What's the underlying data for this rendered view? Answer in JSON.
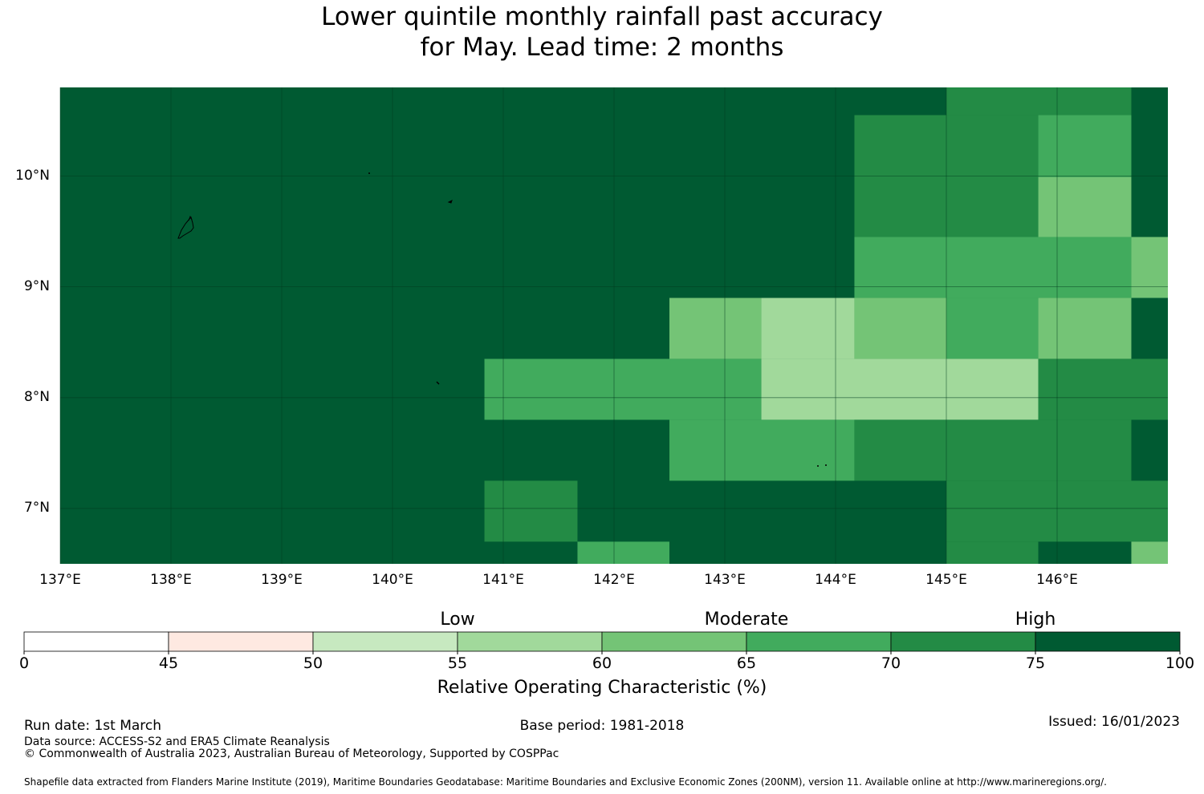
{
  "title": {
    "line1": "Lower quintile monthly rainfall past accuracy",
    "line2": "for May. Lead time: 2 months"
  },
  "map": {
    "lat_labels": [
      "10°N",
      "9°N",
      "8°N",
      "7°N"
    ],
    "lon_labels": [
      "137°E",
      "138°E",
      "139°E",
      "140°E",
      "141°E",
      "142°E",
      "143°E",
      "144°E",
      "145°E",
      "146°E"
    ],
    "background_color": "#005a32",
    "grid_color": "#003a1e"
  },
  "chart_data": {
    "type": "heatmap",
    "title": "Lower quintile monthly rainfall past accuracy for May. Lead time: 2 months",
    "xlabel": "",
    "ylabel": "",
    "xlim": [
      137,
      147
    ],
    "ylim": [
      6.5,
      10.8
    ],
    "xticks": [
      137,
      138,
      139,
      140,
      141,
      142,
      143,
      144,
      145,
      146
    ],
    "yticks": [
      7,
      8,
      9,
      10
    ],
    "default_value_range": [
      75,
      100
    ],
    "cells": [
      {
        "lon": [
          144.17,
          145.0
        ],
        "lat": [
          10.55,
          10.8
        ],
        "range": [
          75,
          100
        ]
      },
      {
        "lon": [
          145.0,
          146.67
        ],
        "lat": [
          10.55,
          10.8
        ],
        "range": [
          70,
          75
        ]
      },
      {
        "lon": [
          144.17,
          145.83
        ],
        "lat": [
          9.45,
          10.55
        ],
        "range": [
          70,
          75
        ]
      },
      {
        "lon": [
          145.83,
          146.67
        ],
        "lat": [
          9.99,
          10.55
        ],
        "range": [
          65,
          70
        ]
      },
      {
        "lon": [
          145.83,
          146.67
        ],
        "lat": [
          9.45,
          9.99
        ],
        "range": [
          60,
          65
        ]
      },
      {
        "lon": [
          144.17,
          146.67
        ],
        "lat": [
          8.9,
          9.45
        ],
        "range": [
          65,
          70
        ]
      },
      {
        "lon": [
          146.67,
          147.0
        ],
        "lat": [
          8.9,
          9.45
        ],
        "range": [
          60,
          65
        ]
      },
      {
        "lon": [
          142.5,
          143.33
        ],
        "lat": [
          8.35,
          8.9
        ],
        "range": [
          60,
          65
        ]
      },
      {
        "lon": [
          143.33,
          144.17
        ],
        "lat": [
          8.35,
          8.9
        ],
        "range": [
          55,
          60
        ]
      },
      {
        "lon": [
          144.17,
          145.0
        ],
        "lat": [
          8.35,
          8.9
        ],
        "range": [
          60,
          65
        ]
      },
      {
        "lon": [
          145.0,
          145.83
        ],
        "lat": [
          8.35,
          8.9
        ],
        "range": [
          65,
          70
        ]
      },
      {
        "lon": [
          145.83,
          146.67
        ],
        "lat": [
          8.35,
          8.9
        ],
        "range": [
          60,
          65
        ]
      },
      {
        "lon": [
          140.83,
          143.33
        ],
        "lat": [
          7.8,
          8.35
        ],
        "range": [
          65,
          70
        ]
      },
      {
        "lon": [
          143.33,
          145.83
        ],
        "lat": [
          7.8,
          8.35
        ],
        "range": [
          55,
          60
        ]
      },
      {
        "lon": [
          145.83,
          147.0
        ],
        "lat": [
          7.8,
          8.35
        ],
        "range": [
          70,
          75
        ]
      },
      {
        "lon": [
          142.5,
          144.17
        ],
        "lat": [
          7.25,
          7.8
        ],
        "range": [
          65,
          70
        ]
      },
      {
        "lon": [
          144.17,
          146.67
        ],
        "lat": [
          7.25,
          7.8
        ],
        "range": [
          70,
          75
        ]
      },
      {
        "lon": [
          140.83,
          141.67
        ],
        "lat": [
          6.7,
          7.25
        ],
        "range": [
          70,
          75
        ]
      },
      {
        "lon": [
          145.0,
          147.0
        ],
        "lat": [
          6.7,
          7.25
        ],
        "range": [
          70,
          75
        ]
      },
      {
        "lon": [
          141.67,
          142.5
        ],
        "lat": [
          6.5,
          6.7
        ],
        "range": [
          65,
          70
        ]
      },
      {
        "lon": [
          145.0,
          145.83
        ],
        "lat": [
          6.5,
          6.7
        ],
        "range": [
          70,
          75
        ]
      },
      {
        "lon": [
          146.67,
          147.0
        ],
        "lat": [
          6.5,
          6.7
        ],
        "range": [
          60,
          65
        ]
      }
    ],
    "colorbar": {
      "label": "Relative Operating Characteristic (%)",
      "ticks": [
        "0",
        "45",
        "50",
        "55",
        "60",
        "65",
        "70",
        "75",
        "100"
      ],
      "bins": [
        {
          "range": [
            0,
            45
          ],
          "color": "#ffffff"
        },
        {
          "range": [
            45,
            50
          ],
          "color": "#fee9e1"
        },
        {
          "range": [
            50,
            55
          ],
          "color": "#c7e9c0"
        },
        {
          "range": [
            55,
            60
          ],
          "color": "#a1d99b"
        },
        {
          "range": [
            60,
            65
          ],
          "color": "#74c476"
        },
        {
          "range": [
            65,
            70
          ],
          "color": "#41ab5d"
        },
        {
          "range": [
            70,
            75
          ],
          "color": "#238b45"
        },
        {
          "range": [
            75,
            100
          ],
          "color": "#005a32"
        }
      ],
      "categories": [
        "Low",
        "Moderate",
        "High"
      ]
    }
  },
  "footer": {
    "run_date": "Run date: 1st March",
    "base_period": "Base period: 1981-2018",
    "issued": "Issued: 16/01/2023",
    "data_source": "Data source: ACCESS-S2 and ERA5 Climate Reanalysis",
    "copyright": "© Commonwealth of Australia 2023, Australian Bureau of Meteorology, Supported by COSPPac",
    "shapefile": "Shapefile data extracted from Flanders Marine Institute (2019), Maritime Boundaries Geodatabase: Maritime Boundaries and Exclusive Economic Zones (200NM), version 11. Available online at http://www.marineregions.org/."
  }
}
